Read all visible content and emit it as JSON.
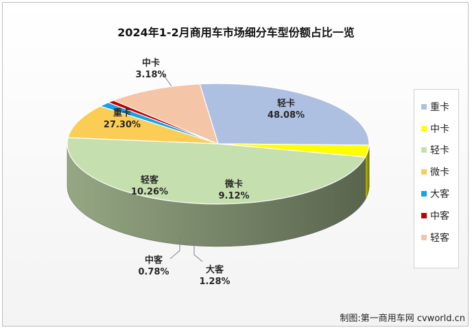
{
  "chart_data": {
    "type": "pie",
    "title": "2024年1-2月商用车市场细分车型份额占比一览",
    "series": [
      {
        "name": "重卡",
        "value": 27.3,
        "label": "27.30%",
        "color": "#aec0e1"
      },
      {
        "name": "中卡",
        "value": 3.18,
        "label": "3.18%",
        "color": "#ffff00"
      },
      {
        "name": "轻卡",
        "value": 48.08,
        "label": "48.08%",
        "color": "#c6dfae"
      },
      {
        "name": "微卡",
        "value": 9.12,
        "label": "9.12%",
        "color": "#fbcd55"
      },
      {
        "name": "大客",
        "value": 1.28,
        "label": "1.28%",
        "color": "#14a3e8"
      },
      {
        "name": "中客",
        "value": 0.78,
        "label": "0.78%",
        "color": "#c00000"
      },
      {
        "name": "轻客",
        "value": 10.26,
        "label": "10.26%",
        "color": "#f4c5a6"
      }
    ],
    "legend_position": "right"
  },
  "credit": "制图:第一商用车网 cvworld.cn"
}
